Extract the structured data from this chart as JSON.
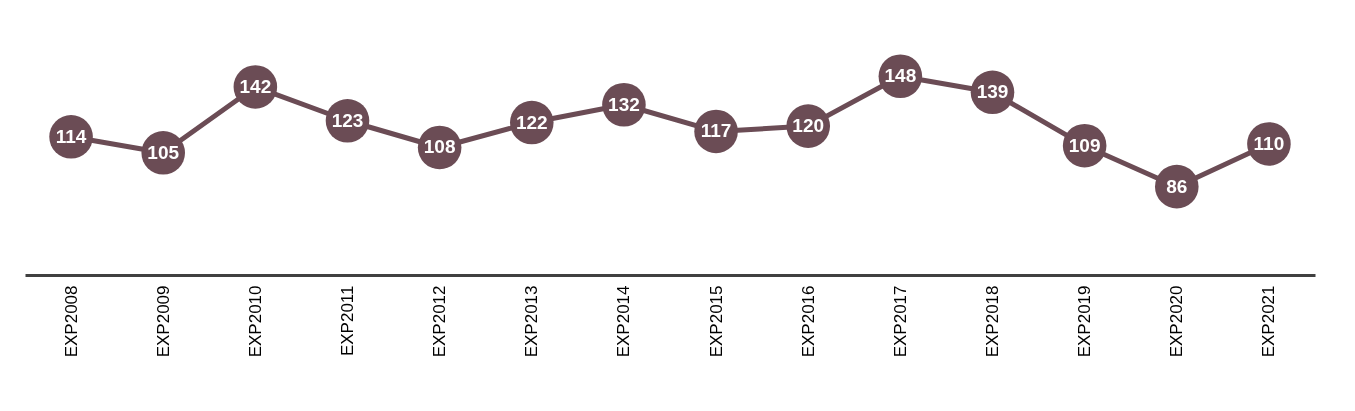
{
  "chart_data": {
    "type": "line",
    "categories": [
      "EXP2008",
      "EXP2009",
      "EXP2010",
      "EXP2011",
      "EXP2012",
      "EXP2013",
      "EXP2014",
      "EXP2015",
      "EXP2016",
      "EXP2017",
      "EXP2018",
      "EXP2019",
      "EXP2020",
      "EXP2021"
    ],
    "series": [
      {
        "color": "#6b4c55",
        "values": [
          114,
          105,
          142,
          123,
          108,
          122,
          132,
          117,
          120,
          148,
          139,
          109,
          86,
          110
        ]
      }
    ],
    "data_labels": true,
    "marker": "circle",
    "line_style": "solid",
    "grid": false,
    "legend": false
  }
}
